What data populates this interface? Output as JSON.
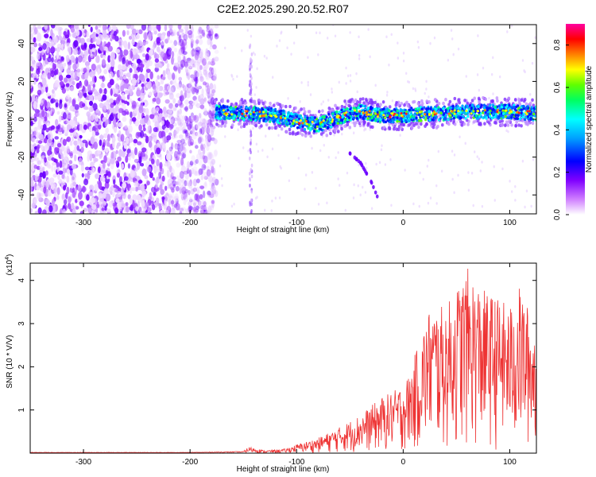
{
  "title": "C2E2.2025.290.20.52.R07",
  "chart_data": [
    {
      "type": "heatmap",
      "id": "spectrogram",
      "xlabel": "Height of straight line (km)",
      "ylabel": "Frequency (Hz)",
      "xlim": [
        -350,
        125
      ],
      "ylim": [
        -50,
        50
      ],
      "xticks": [
        -300,
        -200,
        -100,
        0,
        100
      ],
      "yticks": [
        -40,
        -20,
        0,
        20,
        40
      ],
      "colorbar": {
        "label": "Normalized spectral amplitude",
        "range": [
          0.0,
          0.9
        ],
        "ticks": [
          0.0,
          0.2,
          0.4,
          0.6,
          0.8
        ],
        "colormap": [
          "#ffffff",
          "#b000ff",
          "#5000ff",
          "#0000ff",
          "#00a0ff",
          "#00ffff",
          "#00ff60",
          "#60ff00",
          "#ffff00",
          "#ff8000",
          "#ff0000",
          "#ff00a0"
        ]
      },
      "features": {
        "noise_region_x": [
          -350,
          -175
        ],
        "band_center_hz": [
          [
            -178,
            4
          ],
          [
            -160,
            3
          ],
          [
            -140,
            3
          ],
          [
            -120,
            2
          ],
          [
            -100,
            -1
          ],
          [
            -90,
            -2
          ],
          [
            -80,
            -3
          ],
          [
            -70,
            -1
          ],
          [
            -60,
            1
          ],
          [
            -50,
            3
          ],
          [
            -40,
            4
          ],
          [
            -30,
            3
          ],
          [
            -20,
            2
          ],
          [
            -10,
            2
          ],
          [
            0,
            2
          ],
          [
            20,
            3
          ],
          [
            40,
            3
          ],
          [
            60,
            4
          ],
          [
            80,
            4
          ],
          [
            100,
            4
          ],
          [
            125,
            3
          ]
        ],
        "band_halfwidth_hz": 4,
        "vertical_streak_x": -143,
        "alias_streak": [
          [
            -50,
            -18
          ],
          [
            -40,
            -23
          ],
          [
            -30,
            -33
          ],
          [
            -22,
            -44
          ]
        ]
      }
    },
    {
      "type": "line",
      "id": "snr",
      "xlabel": "Height of straight line (km)",
      "ylabel": "SNR (10 * V/V)",
      "exponent_label": "(x10",
      "exponent_power": "4",
      "exponent_close": ")",
      "xlim": [
        -350,
        125
      ],
      "ylim": [
        0,
        4.4
      ],
      "xticks": [
        -300,
        -200,
        -100,
        0,
        100
      ],
      "yticks": [
        1,
        2,
        3,
        4
      ],
      "color": "#ee3333",
      "envelope": [
        [
          -350,
          0.02
        ],
        [
          -200,
          0.02
        ],
        [
          -150,
          0.04
        ],
        [
          -145,
          0.15
        ],
        [
          -130,
          0.06
        ],
        [
          -110,
          0.1
        ],
        [
          -100,
          0.2
        ],
        [
          -80,
          0.35
        ],
        [
          -60,
          0.6
        ],
        [
          -40,
          0.9
        ],
        [
          -20,
          1.3
        ],
        [
          -5,
          1.5
        ],
        [
          5,
          1.8
        ],
        [
          15,
          2.6
        ],
        [
          25,
          3.4
        ],
        [
          40,
          3.4
        ],
        [
          60,
          4.3
        ],
        [
          75,
          3.8
        ],
        [
          90,
          3.6
        ],
        [
          100,
          3.4
        ],
        [
          110,
          3.9
        ],
        [
          125,
          2.8
        ]
      ]
    }
  ]
}
